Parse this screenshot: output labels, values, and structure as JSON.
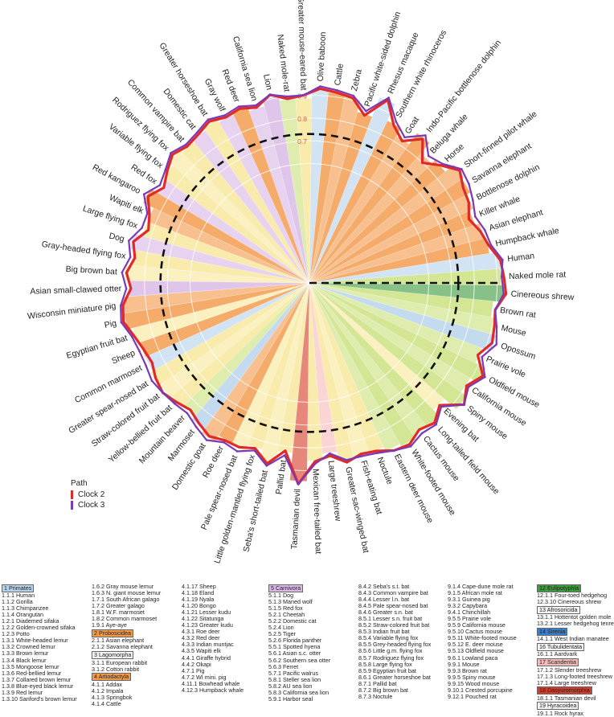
{
  "chart_data": {
    "type": "radial-bar",
    "ticks": [
      "0.9",
      "0.8",
      "0.7"
    ],
    "legend": {
      "title": "Path",
      "entries": [
        {
          "name": "Clock 2",
          "color": "#e02a2a"
        },
        {
          "name": "Clock 3",
          "color": "#7a3ab8"
        }
      ]
    },
    "series": [
      {
        "name": "Clock 2",
        "color": "#e02a2a"
      },
      {
        "name": "Clock 3",
        "color": "#7a3ab8"
      }
    ],
    "mean_line": 0.73,
    "order_colors": {
      "Primates": "#b7d3ec",
      "Proboscidea": "#f39a4a",
      "Lagomorpha": "#f4f4f4",
      "Artiodactyla": "#f39a4a",
      "Carnivora": "#d9b8e6",
      "Chiroptera": "#f7e69a",
      "Rodentia": "#c9e07d",
      "Afrosoricida": "#f4f4f4",
      "Eulipotyphla": "#3f9b3f",
      "Sirenia": "#3b7fd0",
      "Scandentia": "#f8b9b9",
      "Dasyuromorphia": "#d83b2a"
    },
    "points": [
      {
        "name": "Olive baboon",
        "order": "Primates",
        "c2": 0.93,
        "c3": 0.94
      },
      {
        "name": "Cattle",
        "order": "Artiodactyla",
        "c2": 0.92,
        "c3": 0.93
      },
      {
        "name": "Zebra",
        "order": "Artiodactyla",
        "c2": 0.91,
        "c3": 0.92
      },
      {
        "name": "Pacific white-sided dolphin",
        "order": "Artiodactyla",
        "c2": 0.85,
        "c3": 0.87
      },
      {
        "name": "Rhesus macaque",
        "order": "Primates",
        "c2": 0.95,
        "c3": 0.96
      },
      {
        "name": "Southern white rhinoceros",
        "order": "Artiodactyla",
        "c2": 0.86,
        "c3": 0.88
      },
      {
        "name": "Goat",
        "order": "Artiodactyla",
        "c2": 0.82,
        "c3": 0.84
      },
      {
        "name": "Indo-Pacific bottlenose dolphin",
        "order": "Artiodactyla",
        "c2": 0.88,
        "c3": 0.9
      },
      {
        "name": "Beluga whale",
        "order": "Artiodactyla",
        "c2": 0.8,
        "c3": 0.84
      },
      {
        "name": "Horse",
        "order": "Artiodactyla",
        "c2": 0.85,
        "c3": 0.86
      },
      {
        "name": "Short-finned pilot whale",
        "order": "Artiodactyla",
        "c2": 0.9,
        "c3": 0.91
      },
      {
        "name": "Savanna elephant",
        "order": "Proboscidea",
        "c2": 0.87,
        "c3": 0.9
      },
      {
        "name": "Bottlenose dolphin",
        "order": "Artiodactyla",
        "c2": 0.86,
        "c3": 0.88
      },
      {
        "name": "Killer whale",
        "order": "Artiodactyla",
        "c2": 0.83,
        "c3": 0.86
      },
      {
        "name": "Asian elephant",
        "order": "Proboscidea",
        "c2": 0.86,
        "c3": 0.88
      },
      {
        "name": "Humpback whale",
        "order": "Artiodactyla",
        "c2": 0.88,
        "c3": 0.89
      },
      {
        "name": "Human",
        "order": "Primates",
        "c2": 0.92,
        "c3": 0.93
      },
      {
        "name": "Naked mole rat",
        "order": "Rodentia",
        "c2": 0.93,
        "c3": 0.92
      },
      {
        "name": "Cinereous shrew",
        "order": "Eulipotyphla",
        "c2": 0.94,
        "c3": 0.93
      },
      {
        "name": "Brown rat",
        "order": "Rodentia",
        "c2": 0.9,
        "c3": 0.9
      },
      {
        "name": "Mouse",
        "order": "Rodentia",
        "c2": 0.91,
        "c3": 0.92
      },
      {
        "name": "Opossum",
        "order": "Primates",
        "c2": 0.92,
        "c3": 0.94
      },
      {
        "name": "Prairie vole",
        "order": "Rodentia",
        "c2": 0.88,
        "c3": 0.9
      },
      {
        "name": "Oldfield mouse",
        "order": "Rodentia",
        "c2": 0.94,
        "c3": 0.95
      },
      {
        "name": "California mouse",
        "order": "Rodentia",
        "c2": 0.9,
        "c3": 0.91
      },
      {
        "name": "Spiny mouse",
        "order": "Rodentia",
        "c2": 0.94,
        "c3": 0.94
      },
      {
        "name": "Evening bat",
        "order": "Chiroptera",
        "c2": 0.86,
        "c3": 0.87
      },
      {
        "name": "Long-tailed field mouse",
        "order": "Rodentia",
        "c2": 0.9,
        "c3": 0.91
      },
      {
        "name": "Cactus mouse",
        "order": "Rodentia",
        "c2": 0.88,
        "c3": 0.9
      },
      {
        "name": "White-footed mouse",
        "order": "Rodentia",
        "c2": 0.91,
        "c3": 0.92
      },
      {
        "name": "Eastern deer mouse",
        "order": "Rodentia",
        "c2": 0.9,
        "c3": 0.9
      },
      {
        "name": "Noctule",
        "order": "Chiroptera",
        "c2": 0.87,
        "c3": 0.88
      },
      {
        "name": "Fish-eating bat",
        "order": "Chiroptera",
        "c2": 0.86,
        "c3": 0.87
      },
      {
        "name": "Greater sac-winged bat",
        "order": "Chiroptera",
        "c2": 0.88,
        "c3": 0.87
      },
      {
        "name": "Large treeshrew",
        "order": "Scandentia",
        "c2": 0.84,
        "c3": 0.83
      },
      {
        "name": "Mexican free-tailed bat",
        "order": "Chiroptera",
        "c2": 0.86,
        "c3": 0.87
      },
      {
        "name": "Tasmanian devil",
        "order": "Dasyuromorphia",
        "c2": 0.96,
        "c3": 0.96
      },
      {
        "name": "Pallid bat",
        "order": "Chiroptera",
        "c2": 0.82,
        "c3": 0.84
      },
      {
        "name": "Seba's short-tailed bat",
        "order": "Chiroptera",
        "c2": 0.89,
        "c3": 0.9
      },
      {
        "name": "Little golden-mantled flying fox",
        "order": "Chiroptera",
        "c2": 0.84,
        "c3": 0.85
      },
      {
        "name": "Pale spear-nosed bat",
        "order": "Chiroptera",
        "c2": 0.86,
        "c3": 0.88
      },
      {
        "name": "Roe deer",
        "order": "Artiodactyla",
        "c2": 0.86,
        "c3": 0.87
      },
      {
        "name": "Domestic goat",
        "order": "Artiodactyla",
        "c2": 0.88,
        "c3": 0.9
      },
      {
        "name": "Marmoset",
        "order": "Primates",
        "c2": 0.86,
        "c3": 0.88
      },
      {
        "name": "Mountain beaver",
        "order": "Rodentia",
        "c2": 0.84,
        "c3": 0.86
      },
      {
        "name": "Yellow-bellied fruit bat",
        "order": "Chiroptera",
        "c2": 0.86,
        "c3": 0.87
      },
      {
        "name": "Straw-colored fruit bat",
        "order": "Chiroptera",
        "c2": 0.88,
        "c3": 0.88
      },
      {
        "name": "Greater spear-nosed bat",
        "order": "Chiroptera",
        "c2": 0.87,
        "c3": 0.89
      },
      {
        "name": "Common marmoset",
        "order": "Primates",
        "c2": 0.85,
        "c3": 0.88
      },
      {
        "name": "Sheep",
        "order": "Artiodactyla",
        "c2": 0.86,
        "c3": 0.88
      },
      {
        "name": "Egyptian fruit bat",
        "order": "Chiroptera",
        "c2": 0.88,
        "c3": 0.89
      },
      {
        "name": "Pig",
        "order": "Artiodactyla",
        "c2": 0.91,
        "c3": 0.92
      },
      {
        "name": "Wisconsin miniature pig",
        "order": "Artiodactyla",
        "c2": 0.9,
        "c3": 0.91
      },
      {
        "name": "Asian small-clawed otter",
        "order": "Carnivora",
        "c2": 0.86,
        "c3": 0.88
      },
      {
        "name": "Big brown bat",
        "order": "Chiroptera",
        "c2": 0.88,
        "c3": 0.9
      },
      {
        "name": "Gray-headed flying fox",
        "order": "Chiroptera",
        "c2": 0.85,
        "c3": 0.87
      },
      {
        "name": "Dog",
        "order": "Carnivora",
        "c2": 0.87,
        "c3": 0.89
      },
      {
        "name": "Large flying fox",
        "order": "Chiroptera",
        "c2": 0.82,
        "c3": 0.85
      },
      {
        "name": "Wapiti elk",
        "order": "Artiodactyla",
        "c2": 0.84,
        "c3": 0.85
      },
      {
        "name": "Red kangaroo",
        "order": "Artiodactyla",
        "c2": 0.88,
        "c3": 0.9
      },
      {
        "name": "Red fox",
        "order": "Carnivora",
        "c2": 0.84,
        "c3": 0.86
      },
      {
        "name": "Variable flying fox",
        "order": "Chiroptera",
        "c2": 0.87,
        "c3": 0.88
      },
      {
        "name": "Rodriguez flying fox",
        "order": "Chiroptera",
        "c2": 0.9,
        "c3": 0.91
      },
      {
        "name": "Common vampire bat",
        "order": "Chiroptera",
        "c2": 0.88,
        "c3": 0.89
      },
      {
        "name": "Domestic cat",
        "order": "Carnivora",
        "c2": 0.89,
        "c3": 0.9
      },
      {
        "name": "Greater horseshoe bat",
        "order": "Chiroptera",
        "c2": 0.91,
        "c3": 0.92
      },
      {
        "name": "Gray wolf",
        "order": "Carnivora",
        "c2": 0.89,
        "c3": 0.9
      },
      {
        "name": "Red deer",
        "order": "Artiodactyla",
        "c2": 0.9,
        "c3": 0.91
      },
      {
        "name": "California sea lion",
        "order": "Carnivora",
        "c2": 0.88,
        "c3": 0.89
      },
      {
        "name": "Lion",
        "order": "Carnivora",
        "c2": 0.92,
        "c3": 0.92
      },
      {
        "name": "Naked mole-rat",
        "order": "Rodentia",
        "c2": 0.89,
        "c3": 0.9
      },
      {
        "name": "Greater mouse-eared bat",
        "order": "Chiroptera",
        "c2": 0.9,
        "c3": 0.9
      }
    ]
  },
  "table": {
    "columns": [
      [
        {
          "t": "1 Primates",
          "order": "Primates"
        },
        {
          "t": "1.1.1 Human"
        },
        {
          "t": "1.1.2 Gorilla"
        },
        {
          "t": "1.1.3 Chimpanzee"
        },
        {
          "t": "1.1.4 Orangutan"
        },
        {
          "t": "1.2.1 Diademed sifaka"
        },
        {
          "t": "1.2.2 Golden-crowned sifaka"
        },
        {
          "t": "1.2.3 Potto"
        },
        {
          "t": "1.3.1 White-headed lemur"
        },
        {
          "t": "1.3.2 Crowned lemur"
        },
        {
          "t": "1.3.3 Brown lemur"
        },
        {
          "t": "1.3.4 Black lemur"
        },
        {
          "t": "1.3.5 Mongoose lemur"
        },
        {
          "t": "1.3.6 Red-bellied lemur"
        },
        {
          "t": "1.3.7 Collared brown lemur"
        },
        {
          "t": "1.3.8 Blue-eyed black lemur"
        },
        {
          "t": "1.3.9 Red lemur"
        },
        {
          "t": "1.3.10 Sanford's brown lemur"
        }
      ],
      [
        {
          "t": "1.6.2 Gray mouse lemur"
        },
        {
          "t": "1.6.3 N. giant mouse lemur"
        },
        {
          "t": "1.7.1 South African galago"
        },
        {
          "t": "1.7.2 Greater galago"
        },
        {
          "t": "1.8.1 W.F. marmoset"
        },
        {
          "t": "1.8.2 Common marmoset"
        },
        {
          "t": "1.9.1 Aye-aye"
        },
        {
          "t": "2 Proboscidea",
          "order": "Proboscidea"
        },
        {
          "t": "2.1.1 Asian elephant"
        },
        {
          "t": "2.1.2 Savanna elephant"
        },
        {
          "t": "3 Lagomorpha",
          "order": "Lagomorpha"
        },
        {
          "t": "3.1.1 European rabbit"
        },
        {
          "t": "3.1.2 Cotton rabbit"
        },
        {
          "t": "4 Artiodactyla",
          "order": "Artiodactyla"
        },
        {
          "t": "4.1.1 Addax"
        },
        {
          "t": "4.1.2 Impala"
        },
        {
          "t": "4.1.3 Springbok"
        },
        {
          "t": "4.1.4 Cattle"
        }
      ],
      [
        {
          "t": "4.1.17 Sheep"
        },
        {
          "t": "4.1.18 Eland"
        },
        {
          "t": "4.1.19 Nyala"
        },
        {
          "t": "4.1.20 Bongo"
        },
        {
          "t": "4.1.21 Lesser kudu"
        },
        {
          "t": "4.1.22 Sitatunga"
        },
        {
          "t": "4.1.23 Greater kudu"
        },
        {
          "t": "4.3.1 Roe deer"
        },
        {
          "t": "4.3.2 Red deer"
        },
        {
          "t": "4.3.3 Indian muntjac"
        },
        {
          "t": "4.3.5 Wapiti elk"
        },
        {
          "t": "4.4.1 Giraffe hybrid"
        },
        {
          "t": "4.4.2 Okapi"
        },
        {
          "t": "4.7.1 Pig"
        },
        {
          "t": "4.7.2 WI mini. pig"
        },
        {
          "t": "4.11.1 Bowhead whale"
        },
        {
          "t": "4.12.3 Humpback whale"
        }
      ],
      [
        {
          "t": "5 Carnivora",
          "order": "Carnivora"
        },
        {
          "t": "5.1.1 Dog"
        },
        {
          "t": "5.1.3 Maned wolf"
        },
        {
          "t": "5.1.5 Red fox"
        },
        {
          "t": "5.2.1 Cheetah"
        },
        {
          "t": "5.2.2 Domestic cat"
        },
        {
          "t": "5.2.4 Lion"
        },
        {
          "t": "5.2.5 Tiger"
        },
        {
          "t": "5.2.6 Florida panther"
        },
        {
          "t": "5.5.1 Spotted hyena"
        },
        {
          "t": "5.6.1 Asian s.c. otter"
        },
        {
          "t": "5.6.2 Southern sea otter"
        },
        {
          "t": "5.6.3 Ferret"
        },
        {
          "t": "5.7.1 Pacific walrus"
        },
        {
          "t": "5.8.1 Steller sea lion"
        },
        {
          "t": "5.8.2 AU sea lion"
        },
        {
          "t": "5.8.3 California sea lion"
        },
        {
          "t": "5.9.1 Harbor seal"
        }
      ],
      [
        {
          "t": "8.4.2 Seba's s.t. bat"
        },
        {
          "t": "8.4.3 Common vampire bat"
        },
        {
          "t": "8.4.4 Lesser l.n. bat"
        },
        {
          "t": "8.4.5 Pale spear-nosed bat"
        },
        {
          "t": "8.4.6 Greater s.n. bat"
        },
        {
          "t": "8.5.1 Lesser s.n. fruit bat"
        },
        {
          "t": "8.5.2 Straw-colored fruit bat"
        },
        {
          "t": "8.5.3 Indian fruit bat"
        },
        {
          "t": "8.5.4 Variable flying fox"
        },
        {
          "t": "8.5.5 Grey-headed flying fox"
        },
        {
          "t": "8.5.6 Little g.m. flying fox"
        },
        {
          "t": "8.5.7 Rodriguez flying fox"
        },
        {
          "t": "8.5.8 Large flying fox"
        },
        {
          "t": "8.5.9 Egyptian fruit bat"
        },
        {
          "t": "8.6.1 Greater horseshoe bat"
        },
        {
          "t": "8.7.1 Pallid bat"
        },
        {
          "t": "8.7.2 Big brown bat"
        },
        {
          "t": "8.7.3 Noctule"
        }
      ],
      [
        {
          "t": "9.1.4 Cape-dune mole rat"
        },
        {
          "t": "9.1.5 African mole rat"
        },
        {
          "t": "9.3.1 Guinea pig"
        },
        {
          "t": "9.3.2 Capybara"
        },
        {
          "t": "9.4.1 Chinchillah"
        },
        {
          "t": "9.5.5 Prairie vole"
        },
        {
          "t": "9.5.9 California mouse"
        },
        {
          "t": "9.5.10 Cactus mouse"
        },
        {
          "t": "9.5.11 White-footed mouse"
        },
        {
          "t": "9.5.12 E. deer mouse"
        },
        {
          "t": "9.5.13 Oldfield mouse"
        },
        {
          "t": "9.6.1 Lowland paca"
        },
        {
          "t": "9.9.1 Mouse"
        },
        {
          "t": "9.9.3 Brown rat"
        },
        {
          "t": "9.9.5 Spiny mouse"
        },
        {
          "t": "9.9.15 Wood mouse"
        },
        {
          "t": "9.10.1 Crested porcupine"
        },
        {
          "t": "9.12.1 Pouched rat"
        }
      ],
      [
        {
          "t": "12 Eulipotyphla",
          "order": "Eulipotyphla"
        },
        {
          "t": "12.1.1 Four-toed hedgehog"
        },
        {
          "t": "12.3.10 Cinereous shrew"
        },
        {
          "t": "13 Afrosoricida",
          "order": "Afrosoricida"
        },
        {
          "t": "13.1.1 Hottentot golden mole"
        },
        {
          "t": "13.2.1 Lesser hedgehog tenrec"
        },
        {
          "t": "14 Sirenia",
          "order": "Sirenia"
        },
        {
          "t": "14.1.1 West Indian manatee"
        },
        {
          "t": "16 Tubulidentata",
          "order": "Lagomorpha"
        },
        {
          "t": "16.1.1 Aardvark"
        },
        {
          "t": "17 Scandentia",
          "order": "Scandentia"
        },
        {
          "t": "17.1.2 Slender treeshrew"
        },
        {
          "t": "17.1.3 Long-footed treeshrew"
        },
        {
          "t": "17.1.4 Large treeshrew"
        },
        {
          "t": "18 Dasyuromorphia",
          "order": "Dasyuromorphia"
        },
        {
          "t": "18.1.1 Tasmanian devil"
        },
        {
          "t": "19 Hyracoidea",
          "order": "Lagomorpha"
        },
        {
          "t": "19.1.1 Rock hyrax"
        }
      ]
    ]
  }
}
